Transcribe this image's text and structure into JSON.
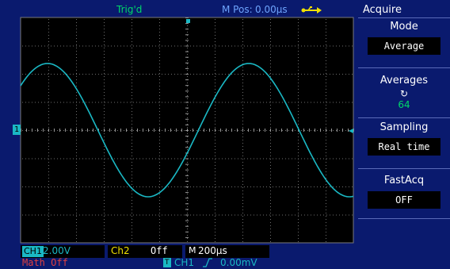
{
  "status": {
    "trigger": "Trig'd",
    "mpos_label": "M Pos:",
    "mpos_value": "0.00μs"
  },
  "marker": {
    "channel1": "1"
  },
  "menu": {
    "title": "Acquire",
    "items": [
      {
        "label": "Mode",
        "value": "Average"
      },
      {
        "label": "Averages",
        "icon": "rotate-icon",
        "value": "64"
      },
      {
        "label": "Sampling",
        "value": "Real time"
      },
      {
        "label": "FastAcq",
        "value": "OFF"
      }
    ]
  },
  "channels": {
    "ch1": {
      "tag": "CH1",
      "scale": "2.00V"
    },
    "ch2": {
      "tag": "Ch2",
      "state": "Off"
    },
    "timebase": {
      "tag": "M",
      "value": "200μs"
    },
    "math": "Math Off",
    "trigger": {
      "tag": "T",
      "source": "CH1",
      "level": "0.00mV"
    }
  },
  "colors": {
    "background": "#0a1a6e",
    "grid_bg": "#000000",
    "trace": "#1ab8c4",
    "status_green": "#00d86a",
    "ch2_yellow": "#f0e000",
    "math_red": "#e04040"
  }
}
